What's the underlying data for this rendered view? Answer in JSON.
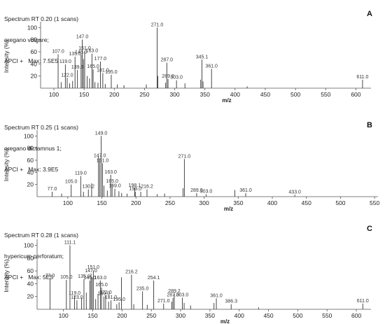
{
  "chart_data": [
    {
      "type": "bar",
      "header": [
        "Spectrum RT 0.20 (1 scans)",
        "oregano vulgare;",
        "APCI +   Max: 7.5E5"
      ],
      "panel_label": "A",
      "xlabel": "m/z",
      "ylabel": "Intensity (%)",
      "xlim": [
        78,
        625
      ],
      "ylim": [
        0,
        105
      ],
      "xticks": [
        100,
        150,
        200,
        250,
        300,
        350,
        400,
        450,
        500,
        550,
        600
      ],
      "yticks": [
        20,
        40,
        60,
        80,
        100
      ],
      "peaks": [
        {
          "x": 107.0,
          "y": 56,
          "label": "107.0"
        },
        {
          "x": 119.0,
          "y": 39,
          "label": "119.0"
        },
        {
          "x": 122.0,
          "y": 17,
          "label": "122.0"
        },
        {
          "x": 135.0,
          "y": 52,
          "label": "135.0"
        },
        {
          "x": 139.0,
          "y": 30,
          "label": "139.0"
        },
        {
          "x": 145.0,
          "y": 55,
          "label": "145.0"
        },
        {
          "x": 147.0,
          "y": 80,
          "label": "147.0"
        },
        {
          "x": 151.0,
          "y": 61,
          "label": "151.0"
        },
        {
          "x": 163.0,
          "y": 57,
          "label": "163.0"
        },
        {
          "x": 165.0,
          "y": 31,
          "label": "165.0"
        },
        {
          "x": 177.0,
          "y": 44,
          "label": "177.0"
        },
        {
          "x": 181.0,
          "y": 25,
          "label": "181.0"
        },
        {
          "x": 195.0,
          "y": 22,
          "label": "195.0"
        },
        {
          "x": 271.0,
          "y": 100,
          "label": "271.0"
        },
        {
          "x": 287.0,
          "y": 42,
          "label": "287.0"
        },
        {
          "x": 289.0,
          "y": 15,
          "label": "289.0"
        },
        {
          "x": 303.0,
          "y": 13,
          "label": "303.0"
        },
        {
          "x": 345.1,
          "y": 47,
          "label": "345.1"
        },
        {
          "x": 361.0,
          "y": 32,
          "label": "361.0"
        },
        {
          "x": 611.0,
          "y": 14,
          "label": "611.0"
        },
        {
          "x": 112.0,
          "y": 10
        },
        {
          "x": 126.0,
          "y": 8
        },
        {
          "x": 131.0,
          "y": 12
        },
        {
          "x": 149.0,
          "y": 48
        },
        {
          "x": 155.0,
          "y": 20
        },
        {
          "x": 159.0,
          "y": 16
        },
        {
          "x": 168.0,
          "y": 10
        },
        {
          "x": 173.0,
          "y": 9
        },
        {
          "x": 185.0,
          "y": 7
        },
        {
          "x": 205.0,
          "y": 6
        },
        {
          "x": 216.0,
          "y": 5
        },
        {
          "x": 253.0,
          "y": 6
        },
        {
          "x": 272.0,
          "y": 20
        },
        {
          "x": 285.0,
          "y": 9
        },
        {
          "x": 317.0,
          "y": 8
        },
        {
          "x": 343.0,
          "y": 14
        },
        {
          "x": 347.0,
          "y": 11
        },
        {
          "x": 420.0,
          "y": 3
        }
      ]
    },
    {
      "type": "bar",
      "header": [
        "Spectrum RT 0.25 (1 scans)",
        "oregano dictamnus 1;",
        "APCI +   Max: 3.9E5"
      ],
      "panel_label": "B",
      "xlabel": "m/z",
      "ylabel": "Intensity (%)",
      "xlim": [
        55,
        555
      ],
      "ylim": [
        0,
        105
      ],
      "xticks": [
        100,
        150,
        200,
        250,
        300,
        350,
        400,
        450,
        500,
        550
      ],
      "yticks": [
        20,
        40,
        60,
        80,
        100
      ],
      "peaks": [
        {
          "x": 77.0,
          "y": 8,
          "label": "77.0"
        },
        {
          "x": 105.0,
          "y": 20,
          "label": "105.0"
        },
        {
          "x": 119.0,
          "y": 34,
          "label": "119.0"
        },
        {
          "x": 130.2,
          "y": 12,
          "label": "130.2"
        },
        {
          "x": 147.0,
          "y": 63,
          "label": "147.0"
        },
        {
          "x": 149.0,
          "y": 100,
          "label": "149.0"
        },
        {
          "x": 151.0,
          "y": 55,
          "label": "151.0"
        },
        {
          "x": 163.0,
          "y": 36,
          "label": "163.0"
        },
        {
          "x": 165.0,
          "y": 21,
          "label": "165.0"
        },
        {
          "x": 169.0,
          "y": 13,
          "label": "169.0"
        },
        {
          "x": 198.1,
          "y": 14,
          "label": "198.1"
        },
        {
          "x": 199.0,
          "y": 8,
          "label": "199.0"
        },
        {
          "x": 216.2,
          "y": 12,
          "label": "216.2"
        },
        {
          "x": 271.0,
          "y": 62,
          "label": "271.0"
        },
        {
          "x": 289.0,
          "y": 6,
          "label": "289.0"
        },
        {
          "x": 303.0,
          "y": 4,
          "label": "303.0"
        },
        {
          "x": 361.0,
          "y": 6,
          "label": "361.0"
        },
        {
          "x": 433.0,
          "y": 3,
          "label": "433.0"
        },
        {
          "x": 91.0,
          "y": 5
        },
        {
          "x": 123.0,
          "y": 8
        },
        {
          "x": 135.0,
          "y": 22
        },
        {
          "x": 145.0,
          "y": 66
        },
        {
          "x": 153.0,
          "y": 18
        },
        {
          "x": 158.0,
          "y": 10
        },
        {
          "x": 175.0,
          "y": 9
        },
        {
          "x": 179.0,
          "y": 6
        },
        {
          "x": 187.0,
          "y": 5
        },
        {
          "x": 207.0,
          "y": 8
        },
        {
          "x": 231.0,
          "y": 4
        },
        {
          "x": 242.0,
          "y": 5
        },
        {
          "x": 269.0,
          "y": 14
        },
        {
          "x": 345.0,
          "y": 11
        }
      ]
    },
    {
      "type": "bar",
      "header": [
        "Spectrum RT 0.28 (1 scans)",
        "hypericum perforatum;",
        "APCI +   Max: 5E5"
      ],
      "panel_label": "C",
      "xlabel": "m/z",
      "ylabel": "Intensity (%)",
      "xlim": [
        55,
        625
      ],
      "ylim": [
        0,
        105
      ],
      "xticks": [
        100,
        150,
        200,
        250,
        300,
        350,
        400,
        450,
        500,
        550,
        600
      ],
      "yticks": [
        20,
        40,
        60,
        80,
        100
      ],
      "peaks": [
        {
          "x": 77.0,
          "y": 48,
          "label": "77.0"
        },
        {
          "x": 105.0,
          "y": 46,
          "label": "105.0"
        },
        {
          "x": 111.1,
          "y": 100,
          "label": "111.1"
        },
        {
          "x": 119.0,
          "y": 21,
          "label": "119.0"
        },
        {
          "x": 123.0,
          "y": 14,
          "label": "123.0"
        },
        {
          "x": 135.0,
          "y": 47,
          "label": "135.0"
        },
        {
          "x": 145.0,
          "y": 45,
          "label": "145.0"
        },
        {
          "x": 147.0,
          "y": 56,
          "label": "147.0"
        },
        {
          "x": 151.0,
          "y": 61,
          "label": "151.0"
        },
        {
          "x": 163.0,
          "y": 45,
          "label": "163.0"
        },
        {
          "x": 165.0,
          "y": 34,
          "label": "165.0"
        },
        {
          "x": 169.0,
          "y": 20,
          "label": "169.0"
        },
        {
          "x": 172.0,
          "y": 22,
          "label": "172.0"
        },
        {
          "x": 181.0,
          "y": 14,
          "label": "181.0"
        },
        {
          "x": 195.0,
          "y": 11,
          "label": "195.0"
        },
        {
          "x": 216.2,
          "y": 54,
          "label": "216.2"
        },
        {
          "x": 235.0,
          "y": 28,
          "label": "235.0"
        },
        {
          "x": 254.1,
          "y": 45,
          "label": "254.1"
        },
        {
          "x": 271.0,
          "y": 9,
          "label": "271.0"
        },
        {
          "x": 287.0,
          "y": 18,
          "label": "287.0"
        },
        {
          "x": 289.2,
          "y": 24,
          "label": "289.2"
        },
        {
          "x": 303.0,
          "y": 18,
          "label": "303.0"
        },
        {
          "x": 361.0,
          "y": 17,
          "label": "361.0"
        },
        {
          "x": 386.3,
          "y": 8,
          "label": "386.3"
        },
        {
          "x": 611.0,
          "y": 9,
          "label": "611.0"
        },
        {
          "x": 131.0,
          "y": 18
        },
        {
          "x": 139.0,
          "y": 26
        },
        {
          "x": 149.0,
          "y": 50
        },
        {
          "x": 155.0,
          "y": 16
        },
        {
          "x": 159.0,
          "y": 24
        },
        {
          "x": 177.0,
          "y": 12
        },
        {
          "x": 191.0,
          "y": 8
        },
        {
          "x": 199.0,
          "y": 50
        },
        {
          "x": 220.0,
          "y": 8
        },
        {
          "x": 243.0,
          "y": 7
        },
        {
          "x": 285.0,
          "y": 12
        },
        {
          "x": 306.0,
          "y": 10
        },
        {
          "x": 317.0,
          "y": 6
        },
        {
          "x": 357.0,
          "y": 10
        },
        {
          "x": 433.0,
          "y": 3
        }
      ]
    }
  ]
}
